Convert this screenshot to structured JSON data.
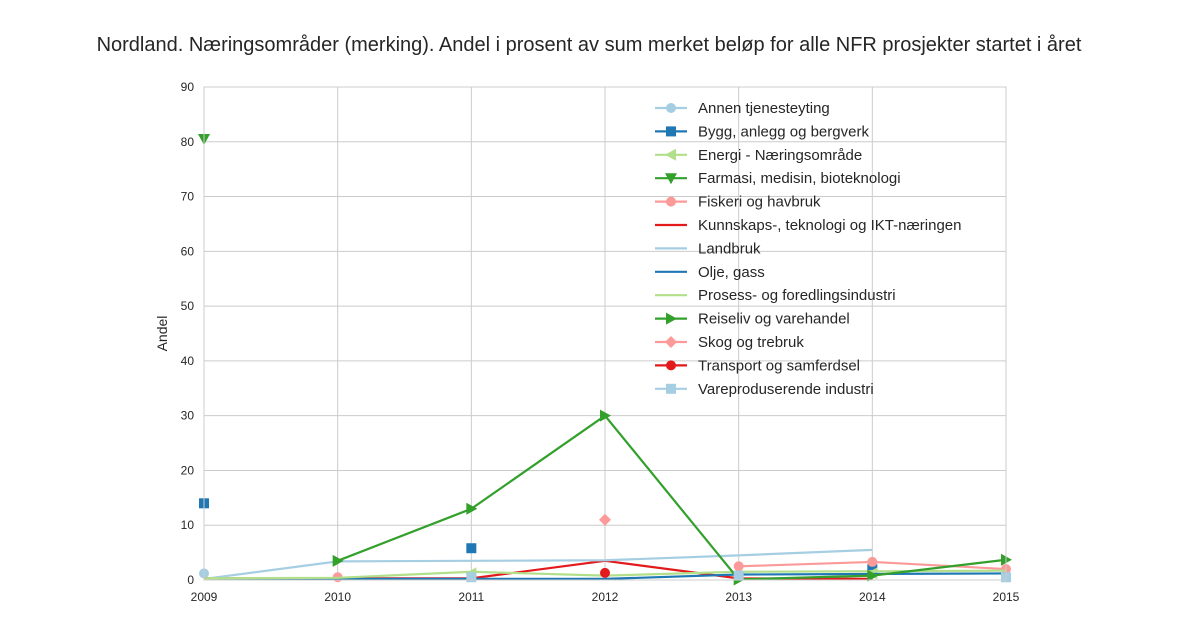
{
  "chart_data": {
    "type": "line",
    "title": "Nordland. Næringsområder (merking). Andel i prosent av sum merket beløp for alle NFR prosjekter startet i året",
    "xlabel": "",
    "ylabel": "Andel",
    "x": [
      2009,
      2010,
      2011,
      2012,
      2013,
      2014,
      2015
    ],
    "xlim": [
      2009,
      2015
    ],
    "ylim": [
      0,
      90
    ],
    "yticks": [
      0,
      10,
      20,
      30,
      40,
      50,
      60,
      70,
      80,
      90
    ],
    "grid": true,
    "legend_position": "top-right",
    "series": [
      {
        "name": "Annen tjenesteyting",
        "color": "#a6cee3",
        "marker": "circle",
        "values": [
          1.2,
          null,
          null,
          null,
          null,
          null,
          null
        ]
      },
      {
        "name": "Bygg, anlegg og bergverk",
        "color": "#1f78b4",
        "marker": "square",
        "values": [
          14.0,
          null,
          5.8,
          null,
          null,
          2.0,
          null
        ]
      },
      {
        "name": "Energi - Næringsområde",
        "color": "#b2df8a",
        "marker": "triangle-left",
        "values": [
          null,
          null,
          1.2,
          null,
          null,
          1.2,
          null
        ]
      },
      {
        "name": "Farmasi, medisin, bioteknologi",
        "color": "#33a02c",
        "marker": "triangle-down",
        "values": [
          80.5,
          null,
          null,
          null,
          null,
          null,
          null
        ]
      },
      {
        "name": "Fiskeri og havbruk",
        "color": "#fb9a99",
        "marker": "circle",
        "values": [
          null,
          0.5,
          null,
          null,
          2.5,
          3.3,
          2.0
        ]
      },
      {
        "name": "Kunnskaps-, teknologi og IKT-næringen",
        "color": "#e31a1c",
        "marker": "none",
        "values": [
          0.3,
          0.3,
          0.3,
          3.5,
          0.3,
          0.2,
          null
        ]
      },
      {
        "name": "Landbruk",
        "color": "#a6cee3",
        "marker": "none",
        "values": [
          0.2,
          3.4,
          3.5,
          3.6,
          4.5,
          5.5,
          null
        ]
      },
      {
        "name": "Olje, gass",
        "color": "#1f78b4",
        "marker": "none",
        "values": [
          0.2,
          0.2,
          0.2,
          0.2,
          1.0,
          1.1,
          1.2
        ]
      },
      {
        "name": "Prosess- og foredlingsindustri",
        "color": "#b2df8a",
        "marker": "none",
        "values": [
          0.3,
          0.4,
          1.5,
          0.8,
          1.5,
          1.6,
          1.7
        ]
      },
      {
        "name": "Reiseliv og varehandel",
        "color": "#33a02c",
        "marker": "triangle-right",
        "values": [
          null,
          3.5,
          13.0,
          30.0,
          0.1,
          0.8,
          3.7
        ]
      },
      {
        "name": "Skog og trebruk",
        "color": "#fb9a99",
        "marker": "diamond",
        "values": [
          null,
          null,
          null,
          11.0,
          null,
          null,
          null
        ]
      },
      {
        "name": "Transport og samferdsel",
        "color": "#e31a1c",
        "marker": "circle",
        "values": [
          null,
          null,
          null,
          1.3,
          null,
          null,
          null
        ]
      },
      {
        "name": "Vareproduserende industri",
        "color": "#a6cee3",
        "marker": "square",
        "values": [
          null,
          null,
          0.5,
          null,
          0.8,
          null,
          0.5
        ]
      }
    ]
  }
}
